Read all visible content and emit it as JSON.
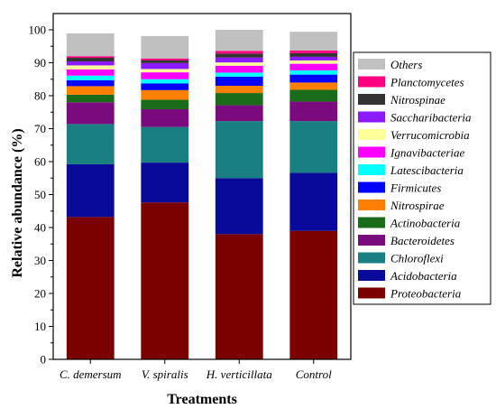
{
  "chart_data": {
    "type": "bar",
    "stacked": true,
    "xlabel": "Treatments",
    "ylabel": "Relative abundance (%)",
    "ylim": [
      0,
      100
    ],
    "yticks": [
      "0",
      "10",
      "20",
      "30",
      "40",
      "50",
      "60",
      "70",
      "80",
      "90",
      "100"
    ],
    "categories": [
      "C. demersum",
      "V. spiralis",
      "H. verticillata",
      "Control"
    ],
    "legend_position": "right",
    "series": [
      {
        "name": "Proteobacteria",
        "color": "#7b0000",
        "values": [
          43.2,
          47.6,
          38.0,
          39.0
        ]
      },
      {
        "name": "Acidobacteria",
        "color": "#0a0a9a",
        "values": [
          16.0,
          12.1,
          17.0,
          17.6
        ]
      },
      {
        "name": "Chloroflexi",
        "color": "#1a7f82",
        "values": [
          12.2,
          10.8,
          17.3,
          15.7
        ]
      },
      {
        "name": "Bacteroidetes",
        "color": "#7a0a7d",
        "values": [
          6.6,
          5.4,
          4.8,
          5.9
        ]
      },
      {
        "name": "Actinobacteria",
        "color": "#1a6b1a",
        "values": [
          2.3,
          2.9,
          3.7,
          3.6
        ]
      },
      {
        "name": "Nitrospirae",
        "color": "#ff8000",
        "values": [
          2.6,
          2.9,
          2.2,
          2.2
        ]
      },
      {
        "name": "Firmicutes",
        "color": "#0000ff",
        "values": [
          1.8,
          2.0,
          2.8,
          2.4
        ]
      },
      {
        "name": "Latescibacteria",
        "color": "#00ffff",
        "values": [
          1.4,
          1.3,
          1.2,
          1.3
        ]
      },
      {
        "name": "Ignavibacteriae",
        "color": "#ff00ff",
        "values": [
          1.9,
          2.1,
          2.1,
          2.0
        ]
      },
      {
        "name": "Verrucomicrobia",
        "color": "#ffff99",
        "values": [
          1.2,
          1.0,
          1.0,
          1.0
        ]
      },
      {
        "name": "Saccharibacteria",
        "color": "#8c1aff",
        "values": [
          1.2,
          1.8,
          1.5,
          1.1
        ]
      },
      {
        "name": "Nitrospinae",
        "color": "#333333",
        "values": [
          1.1,
          0.8,
          1.2,
          1.1
        ]
      },
      {
        "name": "Planctomycetes",
        "color": "#ff0080",
        "values": [
          0.5,
          0.6,
          0.8,
          0.8
        ]
      },
      {
        "name": "Others",
        "color": "#c0c0c0",
        "values": [
          6.9,
          6.8,
          6.4,
          5.7
        ]
      }
    ]
  }
}
